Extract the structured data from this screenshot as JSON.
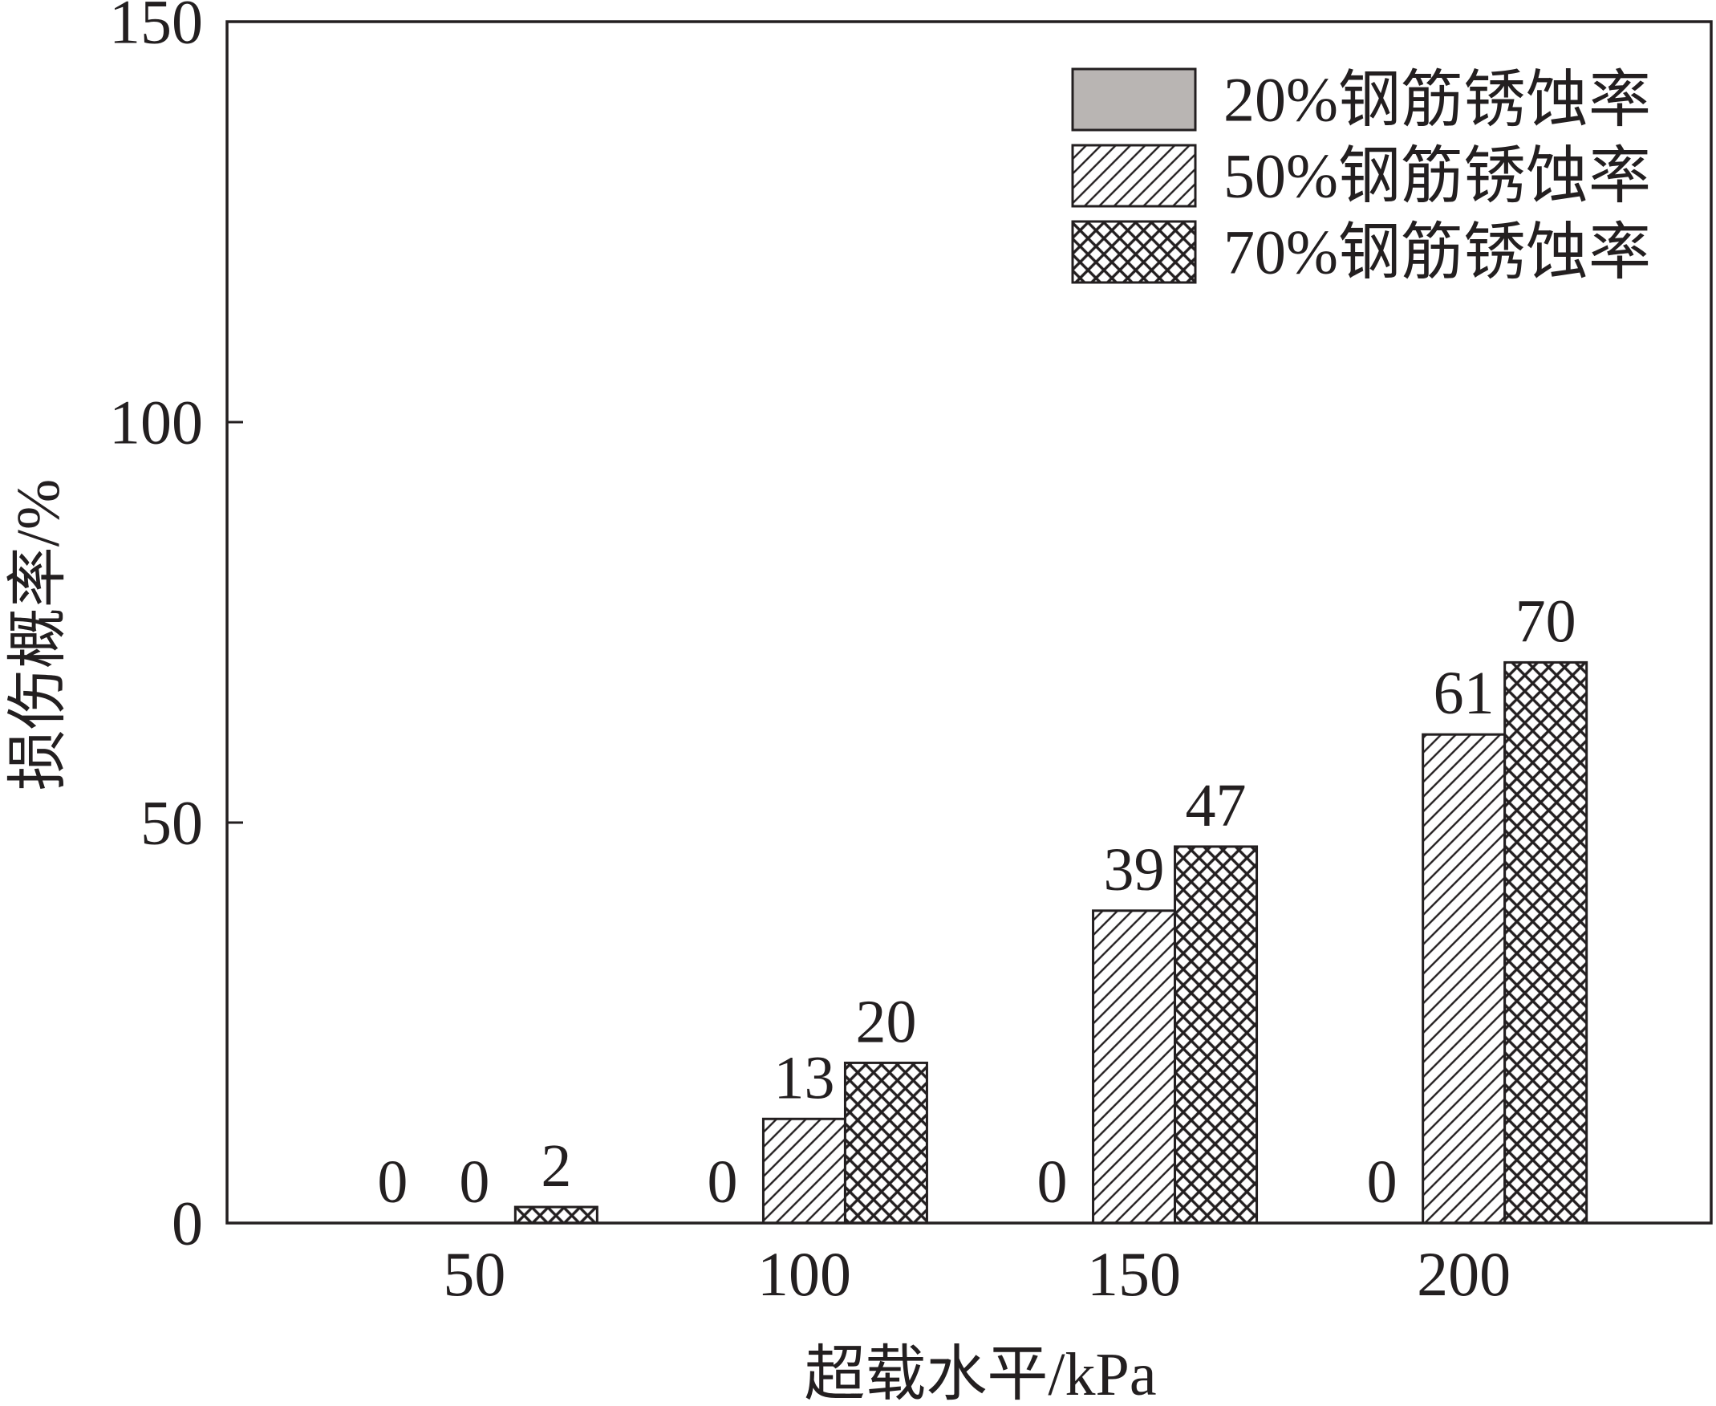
{
  "chart_data": {
    "type": "bar",
    "categories": [
      "50",
      "100",
      "150",
      "200"
    ],
    "series": [
      {
        "name": "20%钢筋锈蚀率",
        "values": [
          0,
          0,
          0,
          0
        ],
        "fill": "solid"
      },
      {
        "name": "50%钢筋锈蚀率",
        "values": [
          0,
          13,
          39,
          61
        ],
        "fill": "diagonal-hatch"
      },
      {
        "name": "70%钢筋锈蚀率",
        "values": [
          2,
          20,
          47,
          70
        ],
        "fill": "crosshatch"
      }
    ],
    "xlabel": "超载水平/kPa",
    "ylabel": "损伤概率/%",
    "ylim": [
      0,
      150
    ],
    "yticks": [
      0,
      50,
      100,
      150
    ],
    "grid": false,
    "legend": "top-right",
    "value_labels": true,
    "colors": {
      "line": "#231f20",
      "solid_fill": "#b9b5b3",
      "background": "#ffffff"
    }
  }
}
